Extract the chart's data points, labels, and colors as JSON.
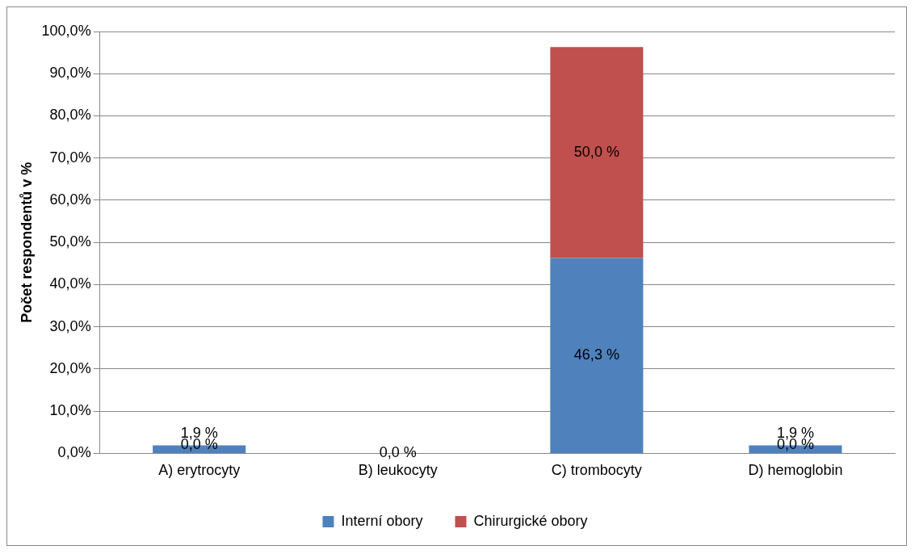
{
  "chart_data": {
    "type": "bar",
    "stacked": true,
    "ylabel": "Počet respondentů v %",
    "categories": [
      "A) erytrocyty",
      "B) leukocyty",
      "C) trombocyty",
      "D) hemoglobin"
    ],
    "series": [
      {
        "name": "Interní obory",
        "color": "#4f81bd",
        "values": [
          1.9,
          0,
          46.3,
          1.9
        ],
        "value_labels": [
          "1,9 %",
          null,
          "46,3 %",
          "1,9 %"
        ]
      },
      {
        "name": "Chirurgické obory",
        "color": "#c0504d",
        "values": [
          0,
          0,
          50.0,
          0
        ],
        "value_labels": [
          "0,0 %",
          "0,0 %",
          "50,0 %",
          "0,0 %"
        ]
      }
    ],
    "ylim": [
      0,
      100
    ],
    "yticks": [
      {
        "value": 0,
        "label": "0,0%"
      },
      {
        "value": 10,
        "label": "10,0%"
      },
      {
        "value": 20,
        "label": "20,0%"
      },
      {
        "value": 30,
        "label": "30,0%"
      },
      {
        "value": 40,
        "label": "40,0%"
      },
      {
        "value": 50,
        "label": "50,0%"
      },
      {
        "value": 60,
        "label": "60,0%"
      },
      {
        "value": 70,
        "label": "70,0%"
      },
      {
        "value": 80,
        "label": "80,0%"
      },
      {
        "value": 90,
        "label": "90,0%"
      },
      {
        "value": 100,
        "label": "100,0%"
      }
    ],
    "grid": "y",
    "legend": "bottom"
  }
}
